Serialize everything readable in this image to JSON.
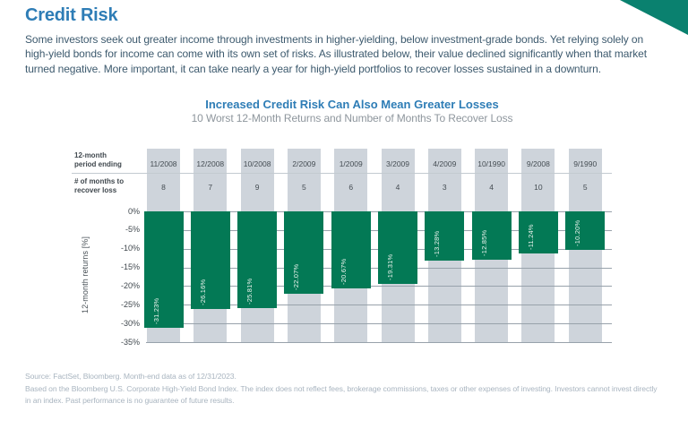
{
  "page": {
    "title": "Credit Risk",
    "intro": "Some investors seek out greater income through investments in higher-yielding, below investment-grade bonds. Yet relying solely on high-yield bonds for income can come with its own set of risks. As illustrated below, their value declined significantly when that market turned negative. More important, it can take nearly a year for high-yield portfolios to recover losses sustained in a downturn."
  },
  "chart": {
    "title": "Increased Credit Risk Can Also Mean Greater Losses",
    "subtitle": "10 Worst 12-Month Returns and Number of Months To Recover Loss",
    "row_labels": {
      "period": "12-month period ending",
      "recover": "# of months to recover loss"
    },
    "y_axis_label": "12-month returns [%]"
  },
  "chart_data": {
    "type": "bar",
    "title": "Increased Credit Risk Can Also Mean Greater Losses",
    "subtitle": "10 Worst 12-Month Returns and Number of Months To Recover Loss",
    "categories": [
      "11/2008",
      "12/2008",
      "10/2008",
      "2/2009",
      "1/2009",
      "3/2009",
      "4/2009",
      "10/1990",
      "9/2008",
      "9/1990"
    ],
    "months_to_recover": [
      8,
      7,
      9,
      5,
      6,
      4,
      3,
      4,
      10,
      5
    ],
    "values": [
      -31.23,
      -26.16,
      -25.81,
      -22.07,
      -20.67,
      -19.31,
      -13.28,
      -12.85,
      -11.24,
      -10.2
    ],
    "labels": [
      "-31.23%",
      "-26.16%",
      "-25.81%",
      "-22.07%",
      "-20.67%",
      "-19.31%",
      "-13.28%",
      "-12.85%",
      "-11.24%",
      "-10.20%"
    ],
    "ylabel": "12-month returns [%]",
    "ylim": [
      -35,
      0
    ],
    "yticks": [
      "0%",
      "-5%",
      "-10%",
      "-15%",
      "-20%",
      "-25%",
      "-30%",
      "-35%"
    ],
    "grid": true,
    "legend": false
  },
  "colors": {
    "accent_teal": "#0a816f",
    "heading_blue": "#2e7db6",
    "bar_green": "#037955",
    "column_gray": "#ced4db",
    "gridline_gray": "#98a2ab"
  },
  "footer": {
    "source": "Source: FactSet, Bloomberg. Month-end data as of 12/31/2023.",
    "disclaimer": "Based on the Bloomberg U.S. Corporate High-Yield Bond Index. The index does not reflect fees, brokerage commissions, taxes or other expenses of investing. Investors cannot invest directly in an index. Past performance is no guarantee of future results."
  }
}
